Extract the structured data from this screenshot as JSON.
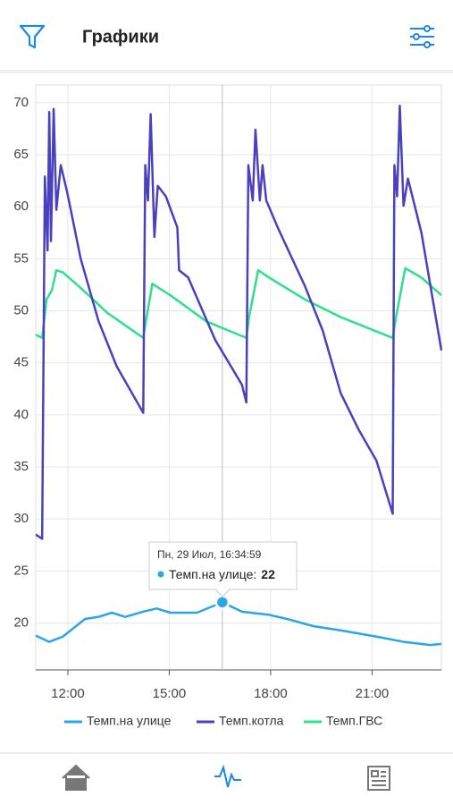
{
  "header": {
    "title": "Графики"
  },
  "chart_data": {
    "type": "line",
    "xlim": [
      11.05,
      23.05
    ],
    "xticks": [
      {
        "value": 12,
        "label": "12:00"
      },
      {
        "value": 15,
        "label": "15:00"
      },
      {
        "value": 18,
        "label": "18:00"
      },
      {
        "value": 21,
        "label": "21:00"
      }
    ],
    "ylim": [
      15.5,
      71.7
    ],
    "yticks": [
      20,
      25,
      30,
      35,
      40,
      45,
      50,
      55,
      60,
      65,
      70
    ],
    "grid": true,
    "legend": "bottom",
    "series": [
      {
        "name": "Темп.на улице",
        "color": "#2aa6e6",
        "x": [
          11.05,
          11.45,
          11.85,
          12.24,
          12.51,
          12.91,
          13.3,
          13.7,
          14.23,
          14.63,
          15.03,
          15.82,
          16.57,
          17.15,
          17.95,
          18.48,
          19.27,
          20.07,
          21.13,
          21.93,
          22.72,
          23.05
        ],
        "values": [
          18.8,
          18.2,
          18.7,
          19.7,
          20.4,
          20.6,
          21.0,
          20.6,
          21.1,
          21.4,
          21.0,
          21.0,
          22,
          21.1,
          20.8,
          20.4,
          19.7,
          19.3,
          18.7,
          18.2,
          17.9,
          18.0
        ]
      },
      {
        "name": "Темп.котла",
        "color": "#4b40bd",
        "x": [
          11.05,
          11.24,
          11.32,
          11.4,
          11.45,
          11.5,
          11.58,
          11.66,
          11.79,
          11.98,
          12.38,
          12.91,
          13.44,
          14.23,
          14.29,
          14.37,
          14.45,
          14.56,
          14.66,
          14.9,
          15.24,
          15.29,
          15.56,
          16.36,
          17.15,
          17.28,
          17.34,
          17.47,
          17.55,
          17.68,
          17.76,
          17.87,
          18.21,
          19.01,
          19.54,
          20.07,
          20.6,
          21.13,
          21.61,
          21.66,
          21.74,
          21.82,
          21.93,
          22.06,
          22.46,
          23.05
        ],
        "values": [
          28.5,
          28.1,
          62.9,
          55.8,
          69.1,
          56.7,
          69.4,
          59.7,
          64.0,
          61.4,
          55.0,
          49.0,
          44.7,
          40.2,
          64.0,
          60.6,
          68.9,
          57.1,
          62.0,
          61.0,
          58.0,
          53.9,
          53.2,
          47.2,
          42.9,
          41.2,
          64.0,
          60.6,
          67.4,
          60.6,
          64.0,
          60.6,
          58.0,
          52.4,
          48.1,
          42.1,
          38.6,
          35.6,
          30.5,
          64.0,
          61.0,
          69.7,
          60.1,
          62.7,
          57.5,
          46.2
        ]
      },
      {
        "name": "Темп.ГВС",
        "color": "#2ee08c",
        "x": [
          11.05,
          11.24,
          11.37,
          11.53,
          11.66,
          11.85,
          12.38,
          13.17,
          14.23,
          14.31,
          14.5,
          15.03,
          16.09,
          17.28,
          17.36,
          17.63,
          17.95,
          19.01,
          20.07,
          21.61,
          21.71,
          21.98,
          22.46,
          23.05
        ],
        "values": [
          47.7,
          47.4,
          51.1,
          52.0,
          53.9,
          53.7,
          52.2,
          49.8,
          47.4,
          49.0,
          52.6,
          51.5,
          49.0,
          47.4,
          49.4,
          53.9,
          53.2,
          51.1,
          49.4,
          47.4,
          49.4,
          54.1,
          53.2,
          51.5
        ]
      }
    ],
    "tooltip": {
      "title": "Пн, 29 Июл, 16:34:59",
      "label": "Темп.на улице:"
    }
  }
}
